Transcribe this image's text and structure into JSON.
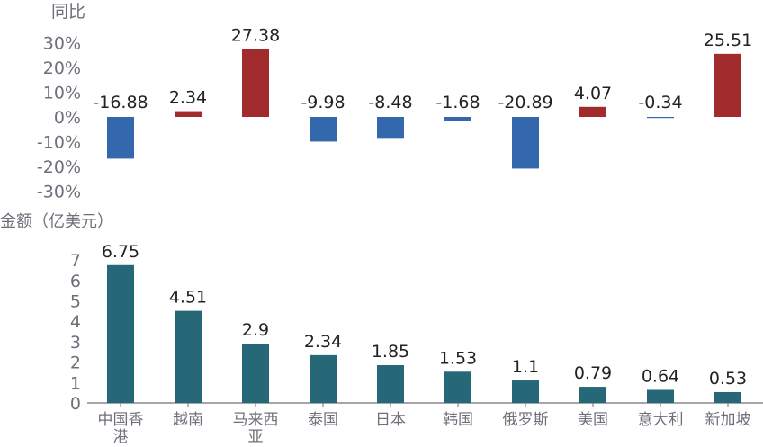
{
  "chart_data": [
    {
      "type": "bar",
      "title": "",
      "ylabel": "同比",
      "categories": [
        "中国香港",
        "越南",
        "马来西亚",
        "泰国",
        "日本",
        "韩国",
        "俄罗斯",
        "美国",
        "意大利",
        "新加坡"
      ],
      "values": [
        -16.88,
        2.34,
        27.38,
        -9.98,
        -8.48,
        -1.68,
        -20.89,
        4.07,
        -0.34,
        25.51
      ],
      "value_labels": [
        "-16.88",
        "2.34",
        "27.38",
        "-9.98",
        "-8.48",
        "-1.68",
        "-20.89",
        "4.07",
        "-0.34",
        "25.51"
      ],
      "yticks": [
        "-30%",
        "-20%",
        "-10%",
        "0%",
        "10%",
        "20%",
        "30%"
      ],
      "ylim": [
        -30,
        30
      ],
      "colors": {
        "positive": "#a22c2d",
        "negative": "#3468ad"
      },
      "grid": false
    },
    {
      "type": "bar",
      "title": "",
      "ylabel": "金额（亿美元）",
      "categories": [
        "中国香港",
        "越南",
        "马来西亚",
        "泰国",
        "日本",
        "韩国",
        "俄罗斯",
        "美国",
        "意大利",
        "新加坡"
      ],
      "category_lines": [
        [
          "中国香",
          "港"
        ],
        [
          "越南"
        ],
        [
          "马来西",
          "亚"
        ],
        [
          "泰国"
        ],
        [
          "日本"
        ],
        [
          "韩国"
        ],
        [
          "俄罗斯"
        ],
        [
          "美国"
        ],
        [
          "意大利"
        ],
        [
          "新加坡"
        ]
      ],
      "values": [
        6.75,
        4.51,
        2.9,
        2.34,
        1.85,
        1.53,
        1.1,
        0.79,
        0.64,
        0.53
      ],
      "value_labels": [
        "6.75",
        "4.51",
        "2.9",
        "2.34",
        "1.85",
        "1.53",
        "1.1",
        "0.79",
        "0.64",
        "0.53"
      ],
      "yticks": [
        "0",
        "1",
        "2",
        "3",
        "4",
        "5",
        "6",
        "7"
      ],
      "ylim": [
        0,
        7
      ],
      "colors": {
        "bar": "#266877"
      },
      "grid": false
    }
  ]
}
